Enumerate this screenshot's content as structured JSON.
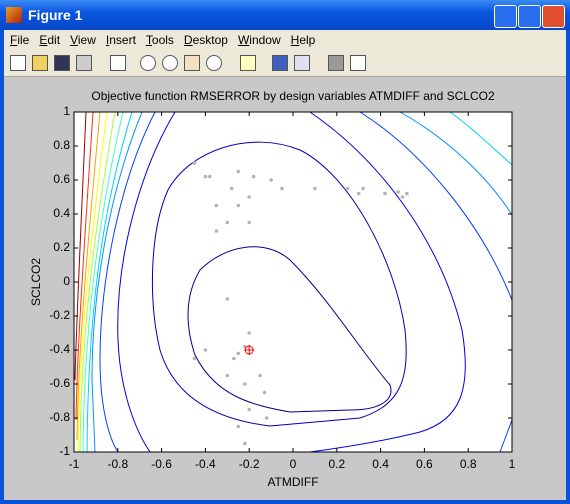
{
  "window": {
    "title": "Figure 1"
  },
  "menu": [
    "File",
    "Edit",
    "View",
    "Insert",
    "Tools",
    "Desktop",
    "Window",
    "Help"
  ],
  "chart_data": {
    "type": "contour",
    "title": "Objective function RMSERROR by design variables ATMDIFF and SCLCO2",
    "xlabel": "ATMDIFF",
    "ylabel": "SCLCO2",
    "xlim": [
      -1,
      1
    ],
    "ylim": [
      -1,
      1
    ],
    "xticks": [
      -1,
      -0.8,
      -0.6,
      -0.4,
      -0.2,
      0,
      0.2,
      0.4,
      0.6,
      0.8,
      1
    ],
    "yticks": [
      -1,
      -0.8,
      -0.6,
      -0.4,
      -0.2,
      0,
      0.2,
      0.4,
      0.6,
      0.8,
      1
    ],
    "grid": false,
    "points": {
      "color": "#b4b4b4",
      "x": [
        -0.45,
        -0.4,
        -0.38,
        -0.28,
        -0.25,
        -0.18,
        -0.1,
        -0.05,
        -0.2,
        -0.35,
        -0.25,
        -0.3,
        -0.2,
        -0.35,
        0.1,
        0.25,
        0.3,
        0.32,
        0.42,
        0.48,
        0.5,
        0.52,
        -0.3,
        -0.2,
        -0.22,
        -0.25,
        -0.27,
        -0.45,
        -0.4,
        -0.15,
        -0.13,
        -0.22,
        -0.2,
        -0.3,
        -0.12,
        -0.22,
        -0.25
      ],
      "y": [
        0.7,
        0.62,
        0.62,
        0.55,
        0.65,
        0.62,
        0.6,
        0.55,
        0.5,
        0.45,
        0.45,
        0.35,
        0.35,
        0.3,
        0.55,
        0.55,
        0.52,
        0.55,
        0.52,
        0.53,
        0.5,
        0.52,
        -0.1,
        -0.3,
        -0.38,
        -0.42,
        -0.45,
        -0.45,
        -0.4,
        -0.55,
        -0.65,
        -0.6,
        -0.75,
        -0.55,
        -0.8,
        -0.95,
        -0.85
      ]
    },
    "optimum": {
      "x": -0.2,
      "y": -0.4,
      "color": "#ff0000"
    }
  }
}
